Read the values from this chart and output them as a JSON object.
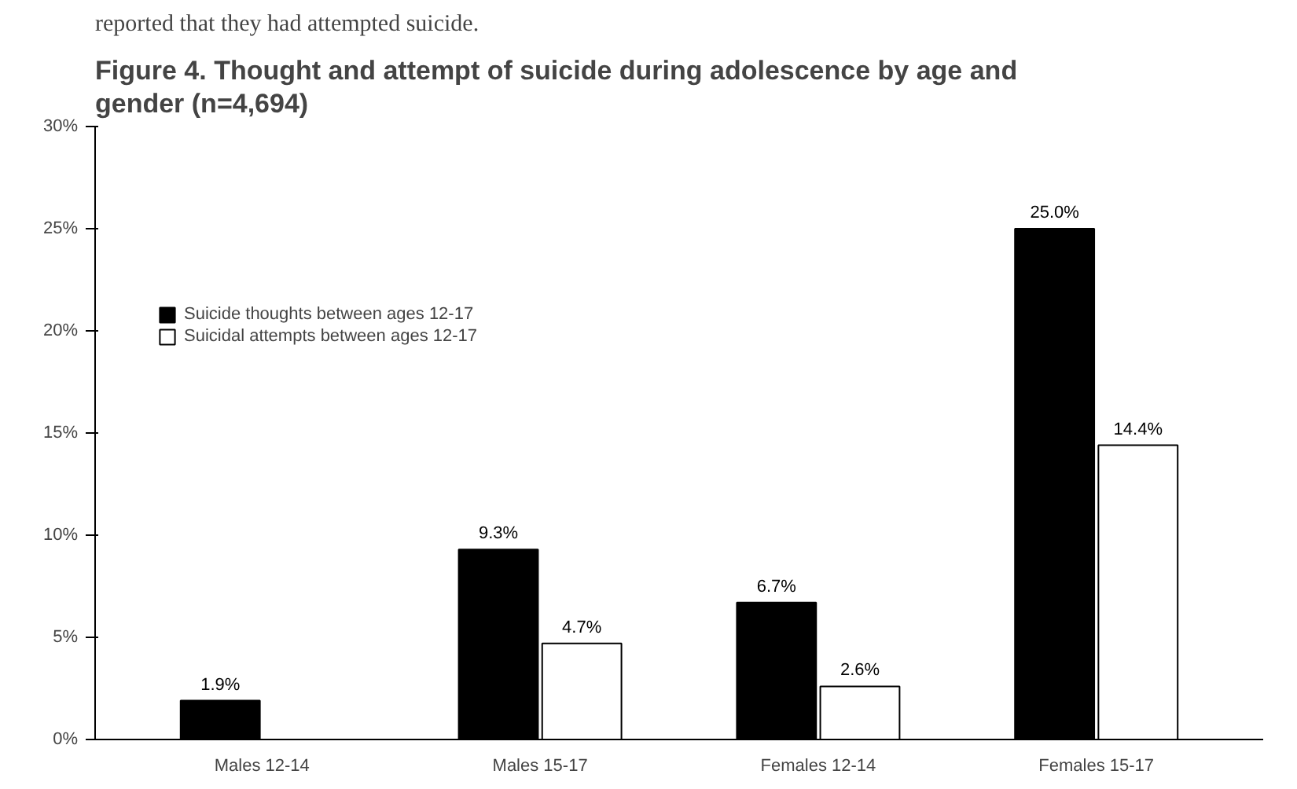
{
  "chart_data": {
    "type": "bar",
    "title": "Figure 4. Thought and attempt of suicide during adolescence by age and gender (n=4,694)",
    "annotations": [
      "reported that they had attempted suicide."
    ],
    "categories": [
      "Males 12-14",
      "Males 15-17",
      "Females 12-14",
      "Females 15-17"
    ],
    "series": [
      {
        "name": "Suicide thoughts between ages 12-17",
        "color": "#000000",
        "values": [
          1.9,
          9.3,
          6.7,
          25.0
        ],
        "value_labels": [
          "1.9%",
          "9.3%",
          "6.7%",
          "25.0%"
        ]
      },
      {
        "name": "Suicidal attempts between ages 12-17",
        "color": "#ffffff",
        "values": [
          null,
          4.7,
          2.6,
          14.4
        ],
        "value_labels": [
          null,
          "4.7%",
          "2.6%",
          "14.4%"
        ]
      }
    ],
    "ylim": [
      0,
      30
    ],
    "yticks": [
      {
        "value": 0,
        "label": "0%"
      },
      {
        "value": 5,
        "label": "5%"
      },
      {
        "value": 10,
        "label": "10%"
      },
      {
        "value": 15,
        "label": "15%"
      },
      {
        "value": 20,
        "label": "20%"
      },
      {
        "value": 25,
        "label": "25%"
      },
      {
        "value": 30,
        "label": "30%"
      }
    ],
    "grid": false,
    "legend": "top left"
  }
}
